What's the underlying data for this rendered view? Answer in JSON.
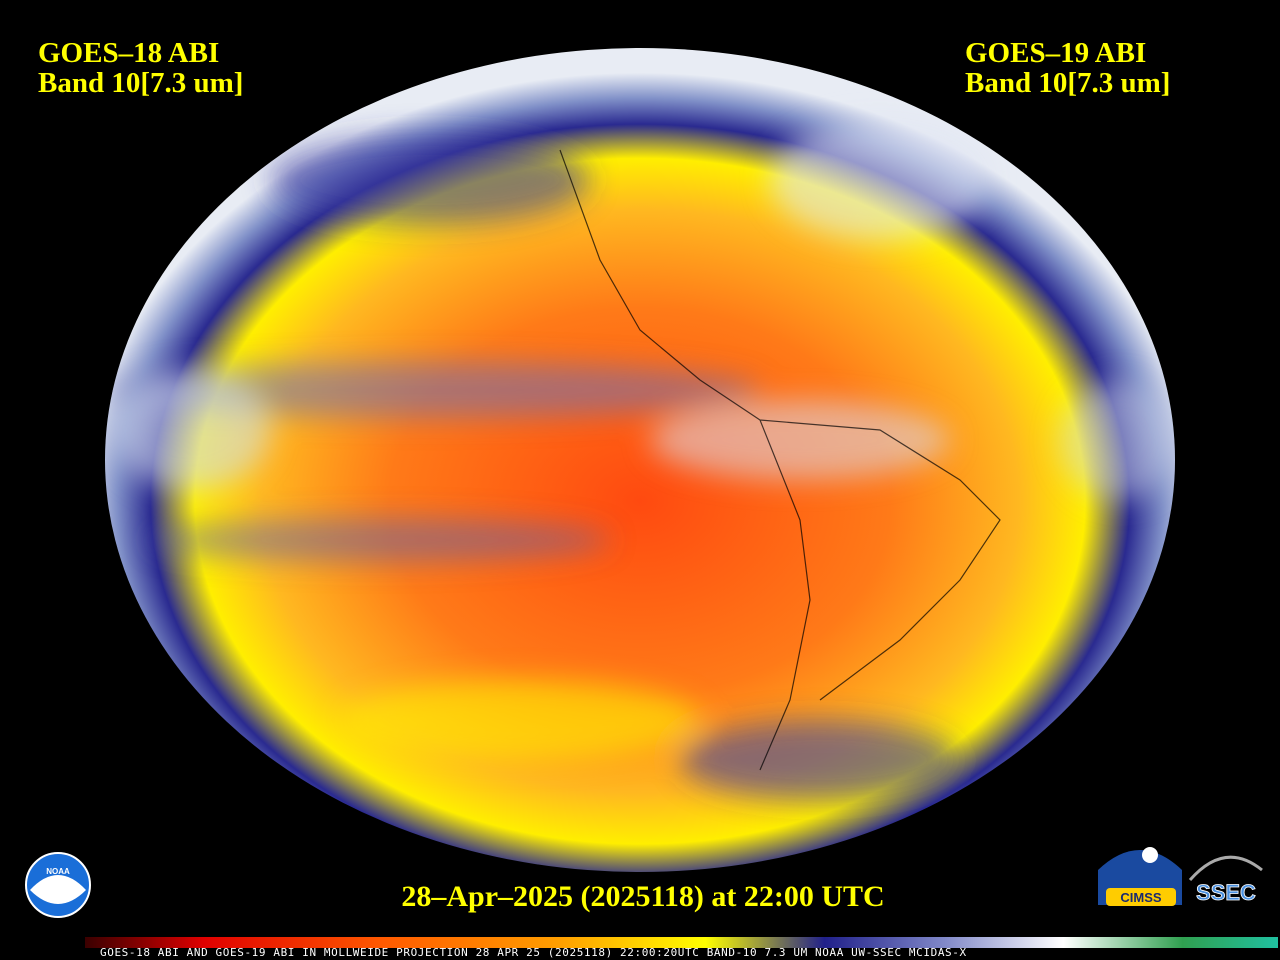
{
  "header": {
    "left": [
      "GOES–18 ABI",
      "Band 10[7.3 um]"
    ],
    "right": [
      "GOES–19 ABI",
      "Band 10[7.3 um]"
    ]
  },
  "date_line": "28–Apr–2025 (2025118) at 22:00 UTC",
  "footer": {
    "caption": "GOES-18 ABI AND GOES-19 ABI IN MOLLWEIDE PROJECTION 28 APR 25 (2025118) 22:00:20UTC BAND-10 7.3 UM NOAA UW-SSEC MCIDAS-X"
  },
  "logos": {
    "noaa": "NOAA",
    "cimss": "CIMSS",
    "ssec": "SSEC"
  }
}
